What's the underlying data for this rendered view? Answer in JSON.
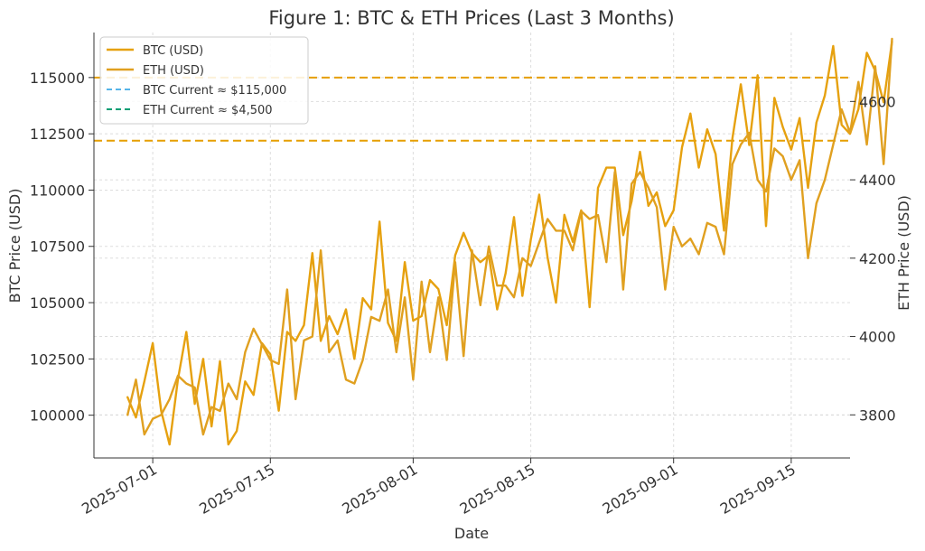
{
  "chart_data": {
    "type": "line",
    "title": "Figure 1: BTC & ETH Prices (Last 3 Months)",
    "xlabel": "Date",
    "ylabel_left": "BTC Price (USD)",
    "ylabel_right": "ETH Price (USD)",
    "x_range": [
      "2025-06-24",
      "2025-09-22"
    ],
    "ylim_left": [
      98100,
      117000
    ],
    "ylim_right": [
      3690,
      4776
    ],
    "x_ticks": [
      "2025-07-01",
      "2025-07-15",
      "2025-08-01",
      "2025-08-15",
      "2025-09-01",
      "2025-09-15"
    ],
    "y_ticks_left": [
      100000,
      102500,
      105000,
      107500,
      110000,
      112500,
      115000
    ],
    "y_ticks_right": [
      3800,
      4000,
      4200,
      4400,
      4600
    ],
    "grid": true,
    "legend_position": "upper-left",
    "colors": {
      "btc": "#E6A10F",
      "eth": "#E0A020",
      "btc_ref": "#56B4E9",
      "eth_ref": "#009E73",
      "ref_drawn": "#E69F00",
      "grid": "#dddddd",
      "text": "#333333"
    },
    "series": [
      {
        "name": "BTC (USD)",
        "axis": "left",
        "start_date": "2025-06-28",
        "values": [
          100800,
          99900,
          101500,
          103200,
          100200,
          98700,
          101600,
          103700,
          100500,
          102500,
          99500,
          102400,
          98700,
          99300,
          101500,
          100900,
          103200,
          102700,
          100200,
          103700,
          103300,
          104000,
          107200,
          103300,
          104400,
          103600,
          104700,
          102500,
          105200,
          104700,
          108600,
          104100,
          103300,
          106800,
          104200,
          104400,
          106000,
          105600,
          104000,
          107100,
          108100,
          107200,
          106800,
          107100,
          104700,
          106300,
          108800,
          105300,
          107800,
          109800,
          107000,
          105000,
          108900,
          107700,
          109100,
          104800,
          110100,
          111000,
          111000,
          108000,
          109500,
          111700,
          109300,
          109900,
          108400,
          109100,
          111900,
          113400,
          111000,
          112700,
          111600,
          108200,
          112300,
          114700,
          112000,
          115100,
          108400,
          114100,
          112800,
          111800,
          113200,
          110100,
          113000,
          114200,
          116400,
          112900,
          112500,
          113600,
          116100,
          115300,
          113900,
          116600
        ]
      },
      {
        "name": "ETH (USD)",
        "axis": "right",
        "start_date": "2025-06-28",
        "values": [
          3800,
          3890,
          3750,
          3790,
          3800,
          3840,
          3900,
          3880,
          3870,
          3750,
          3820,
          3810,
          3880,
          3840,
          3960,
          4020,
          3980,
          3940,
          3930,
          4120,
          3840,
          3990,
          4000,
          4220,
          3960,
          3990,
          3890,
          3880,
          3940,
          4050,
          4040,
          4120,
          3960,
          4100,
          3890,
          4140,
          3960,
          4100,
          3940,
          4190,
          3950,
          4220,
          4080,
          4230,
          4130,
          4130,
          4100,
          4200,
          4180,
          4240,
          4300,
          4270,
          4270,
          4220,
          4320,
          4300,
          4310,
          4190,
          4420,
          4120,
          4390,
          4420,
          4380,
          4330,
          4120,
          4280,
          4230,
          4250,
          4210,
          4290,
          4280,
          4210,
          4440,
          4490,
          4520,
          4400,
          4370,
          4480,
          4460,
          4400,
          4450,
          4200,
          4340,
          4400,
          4490,
          4580,
          4520,
          4650,
          4490,
          4690,
          4440,
          4760
        ]
      }
    ],
    "reference_lines": [
      {
        "name": "BTC Current ≈ $115,000",
        "axis": "left",
        "value": 115000
      },
      {
        "name": "ETH Current ≈ $4,500",
        "axis": "right",
        "value": 4500
      }
    ]
  }
}
